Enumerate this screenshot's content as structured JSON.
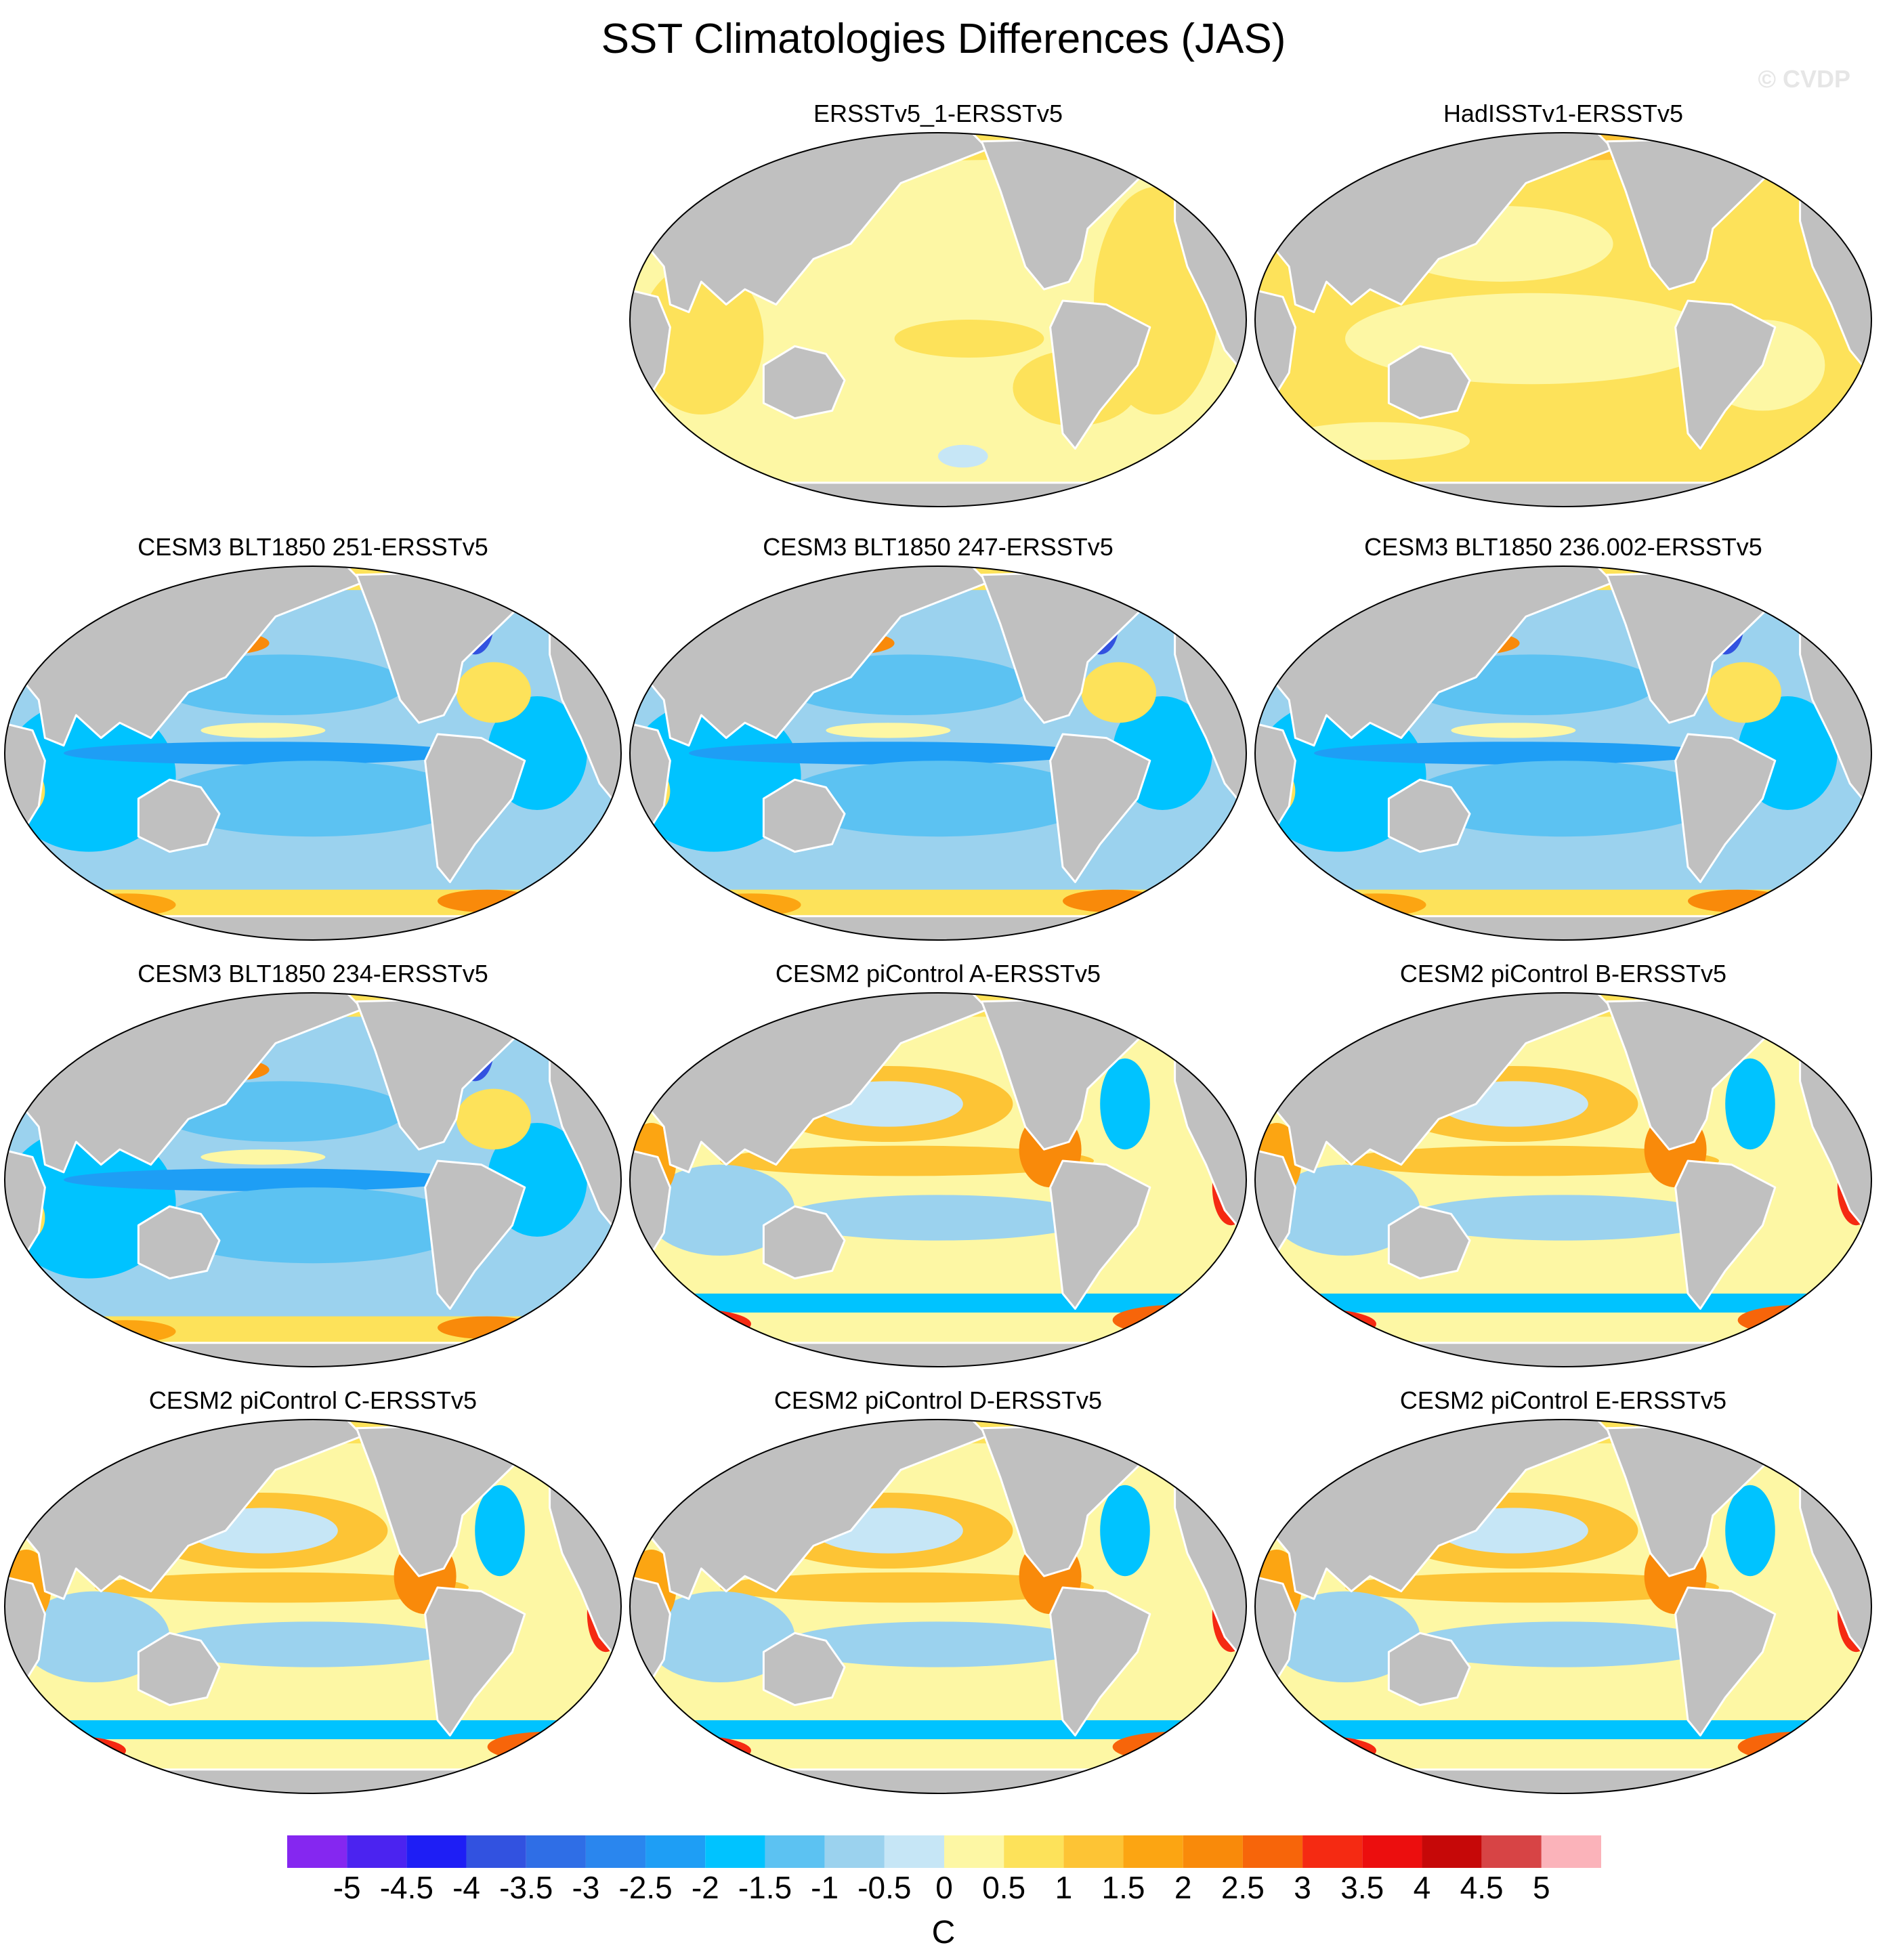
{
  "title": "SST Climatologies Differences (JAS)",
  "watermark": "© CVDP",
  "panels": [
    {
      "label": "ERSSTv5_1-ERSSTv5",
      "pattern": "obs-small"
    },
    {
      "label": "HadISSTv1-ERSSTv5",
      "pattern": "obs-warm"
    },
    {
      "label": "CESM3 BLT1850 251-ERSSTv5",
      "pattern": "cool"
    },
    {
      "label": "CESM3 BLT1850 247-ERSSTv5",
      "pattern": "cool"
    },
    {
      "label": "CESM3 BLT1850 236.002-ERSSTv5",
      "pattern": "cool"
    },
    {
      "label": "CESM3 BLT1850 234-ERSSTv5",
      "pattern": "cool"
    },
    {
      "label": "CESM2 piControl A-ERSSTv5",
      "pattern": "warm"
    },
    {
      "label": "CESM2 piControl B-ERSSTv5",
      "pattern": "warm"
    },
    {
      "label": "CESM2 piControl C-ERSSTv5",
      "pattern": "warm"
    },
    {
      "label": "CESM2 piControl D-ERSSTv5",
      "pattern": "warm"
    },
    {
      "label": "CESM2 piControl E-ERSSTv5",
      "pattern": "warm"
    }
  ],
  "colorbar": {
    "ticks": [
      "-5",
      "-4.5",
      "-4",
      "-3.5",
      "-3",
      "-2.5",
      "-2",
      "-1.5",
      "-1",
      "-0.5",
      "0",
      "0.5",
      "1",
      "1.5",
      "2",
      "2.5",
      "3",
      "3.5",
      "4",
      "4.5",
      "5"
    ],
    "colors": [
      "#8527f0",
      "#4b23f0",
      "#1e1ef5",
      "#3252e0",
      "#2f6ee6",
      "#2a86ee",
      "#1e9ef5",
      "#00c3ff",
      "#5cc2f2",
      "#9bd2ee",
      "#c6e6f6",
      "#fdf7a4",
      "#fde25a",
      "#fdc435",
      "#fca512",
      "#f98a0a",
      "#f7650a",
      "#f52a12",
      "#ec0e0e",
      "#c60808",
      "#d74445",
      "#fbb3ba"
    ],
    "unit": "C"
  },
  "colors": {
    "land": "#c0c0c0",
    "coast": "#ffffff"
  }
}
